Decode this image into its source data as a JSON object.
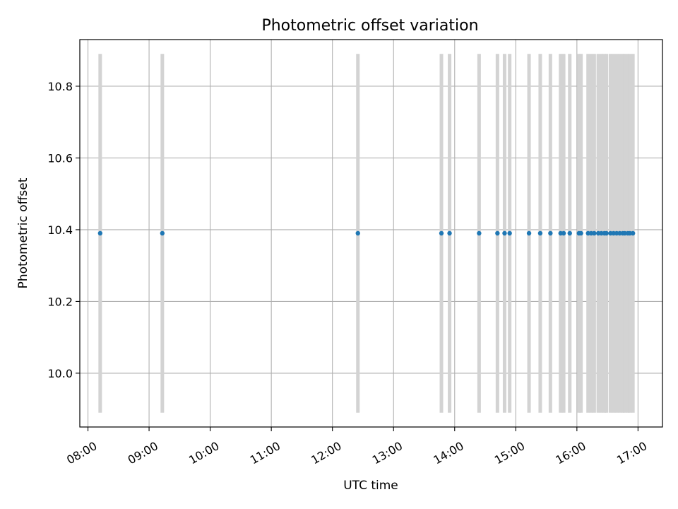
{
  "chart_data": {
    "type": "scatter",
    "title": "Photometric offset variation",
    "xlabel": "UTC time",
    "ylabel": "Photometric offset",
    "xlim": [
      "07:52",
      "17:24"
    ],
    "ylim": [
      9.85,
      10.93
    ],
    "x_ticks": [
      "08:00",
      "09:00",
      "10:00",
      "11:00",
      "12:00",
      "13:00",
      "14:00",
      "15:00",
      "16:00",
      "17:00"
    ],
    "y_ticks": [
      "10.0",
      "10.2",
      "10.4",
      "10.6",
      "10.8"
    ],
    "grid": true,
    "point_color": "#1f77b4",
    "bar_color": "#d3d3d3",
    "series": [
      {
        "x": [
          "08:12",
          "09:13",
          "12:25",
          "13:47",
          "13:55",
          "14:24",
          "14:42",
          "14:49",
          "14:54",
          "15:13",
          "15:24",
          "15:34",
          "15:44",
          "15:47",
          "15:53",
          "16:02",
          "16:04",
          "16:11",
          "16:14",
          "16:17",
          "16:21",
          "16:24",
          "16:27",
          "16:29",
          "16:33",
          "16:36",
          "16:39",
          "16:42",
          "16:45",
          "16:47",
          "16:50",
          "16:52",
          "16:55"
        ],
        "y": [
          10.39,
          10.39,
          10.39,
          10.39,
          10.39,
          10.39,
          10.39,
          10.39,
          10.39,
          10.39,
          10.39,
          10.39,
          10.39,
          10.39,
          10.39,
          10.39,
          10.39,
          10.39,
          10.39,
          10.39,
          10.39,
          10.39,
          10.39,
          10.39,
          10.39,
          10.39,
          10.39,
          10.39,
          10.39,
          10.39,
          10.39,
          10.39,
          10.39
        ],
        "error": 0.5
      }
    ]
  }
}
